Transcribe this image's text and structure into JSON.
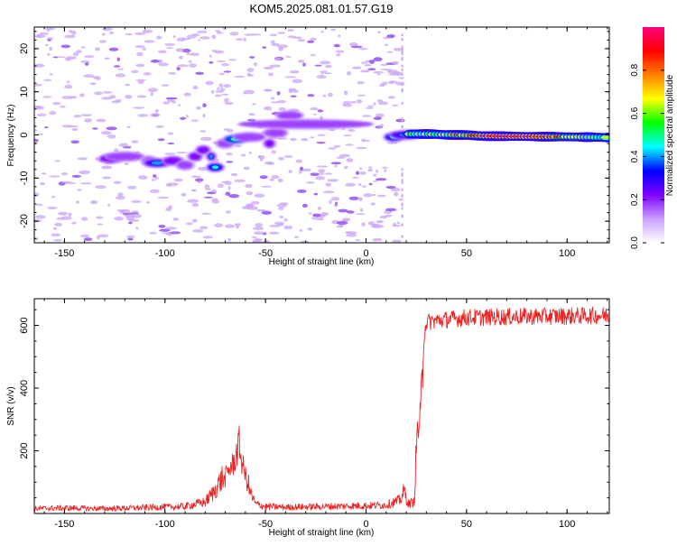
{
  "figure": {
    "title": "KOM5.2025.081.01.57.G19"
  },
  "chart_data": [
    {
      "type": "heatmap",
      "title": "KOM5.2025.081.01.57.G19",
      "xlabel": "Height of straight line (km)",
      "ylabel": "Frequency (Hz)",
      "xlim": [
        -165,
        121
      ],
      "ylim": [
        -25,
        25
      ],
      "xticks": [
        -150,
        -100,
        -50,
        0,
        50,
        100
      ],
      "yticks": [
        -20,
        -10,
        0,
        10,
        20
      ],
      "colorbar": {
        "label": "Normalized spectral amplitude",
        "range": [
          0,
          1
        ],
        "ticks": [
          "0.0",
          "0.2",
          "0.4",
          "0.6",
          "0.8"
        ],
        "colors": [
          "#ffffff",
          "#c9a0ff",
          "#7f00ff",
          "#0000ff",
          "#00ffff",
          "#00ff00",
          "#ffff00",
          "#ff8000",
          "#ff0000",
          "#ff0080"
        ]
      },
      "segments": [
        {
          "x": -127,
          "y": -5.5,
          "amp": 0.25
        },
        {
          "x": -120,
          "y": -5.0,
          "amp": 0.2
        },
        {
          "x": -108,
          "y": -6.0,
          "amp": 0.2
        },
        {
          "x": -104,
          "y": -6.5,
          "amp": 0.3
        },
        {
          "x": -96,
          "y": -6.0,
          "amp": 0.25
        },
        {
          "x": -90,
          "y": -7.0,
          "amp": 0.2
        },
        {
          "x": -85,
          "y": -5.0,
          "amp": 0.25
        },
        {
          "x": -81,
          "y": -3.5,
          "amp": 0.25
        },
        {
          "x": -77,
          "y": -5.0,
          "amp": 0.3
        },
        {
          "x": -75,
          "y": -7.5,
          "amp": 0.35
        },
        {
          "x": -70,
          "y": -2.0,
          "amp": 0.2
        },
        {
          "x": -65,
          "y": -1.0,
          "amp": 0.4
        },
        {
          "x": -58,
          "y": -0.5,
          "amp": 0.2
        },
        {
          "x": -48,
          "y": -2.0,
          "amp": 0.25
        },
        {
          "x": -45,
          "y": 0.5,
          "amp": 0.2
        },
        {
          "x": -38,
          "y": 4.5,
          "amp": 0.2
        },
        {
          "x": -30,
          "y": 2.5,
          "amp": 0.2
        },
        {
          "x": 14,
          "y": -0.5,
          "amp": 0.35
        },
        {
          "x": 20,
          "y": 0.0,
          "amp": 0.3
        },
        {
          "x": 30,
          "y": 0.2,
          "amp": 0.55
        },
        {
          "x": 45,
          "y": 0.0,
          "amp": 0.75
        },
        {
          "x": 65,
          "y": -0.3,
          "amp": 0.95
        },
        {
          "x": 90,
          "y": -0.4,
          "amp": 0.9
        },
        {
          "x": 110,
          "y": -0.5,
          "amp": 0.65
        },
        {
          "x": 120,
          "y": -0.6,
          "amp": 0.55
        }
      ]
    },
    {
      "type": "line",
      "xlabel": "Height of straight line (km)",
      "ylabel": "SNR (v/v)",
      "xlim": [
        -165,
        121
      ],
      "ylim": [
        0,
        685
      ],
      "xticks": [
        -150,
        -100,
        -50,
        0,
        50,
        100
      ],
      "yticks": [
        200,
        400,
        600
      ],
      "color": "#ee2222",
      "series": [
        {
          "x": [
            -165,
            -150,
            -130,
            -110,
            -90,
            -80,
            -76,
            -72,
            -70,
            -68,
            -66,
            -64,
            -63,
            -62,
            -60,
            -58,
            -55,
            -50,
            -40,
            -20,
            0,
            10,
            17,
            19,
            21,
            24,
            25,
            26,
            27,
            28,
            29,
            30,
            35,
            50,
            75,
            100,
            121
          ],
          "y": [
            12,
            14,
            12,
            15,
            18,
            30,
            55,
            90,
            120,
            150,
            165,
            210,
            235,
            180,
            130,
            60,
            25,
            18,
            16,
            18,
            20,
            22,
            35,
            60,
            25,
            30,
            220,
            300,
            295,
            450,
            580,
            610,
            615,
            625,
            628,
            630,
            632
          ]
        }
      ]
    }
  ]
}
